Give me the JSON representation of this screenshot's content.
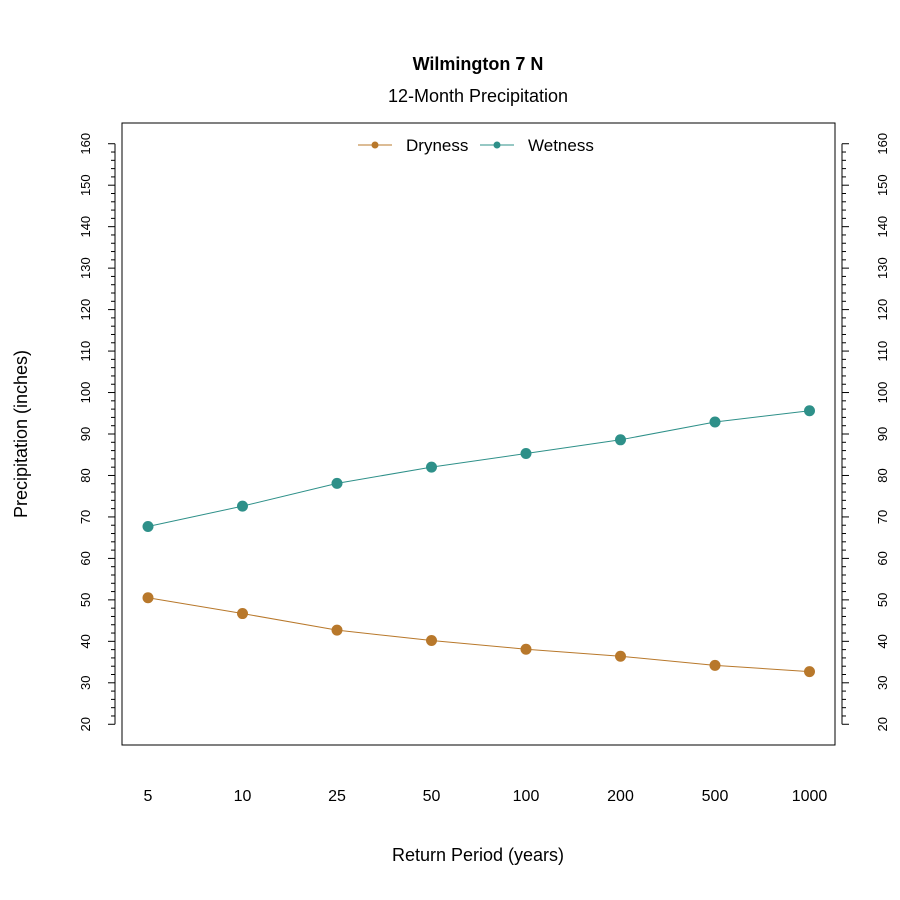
{
  "chart_data": {
    "type": "line",
    "title": "Wilmington 7 N",
    "subtitle": "12-Month Precipitation",
    "xlabel": "Return Period (years)",
    "ylabel": "Precipitation (inches)",
    "categories": [
      "5",
      "10",
      "25",
      "50",
      "100",
      "200",
      "500",
      "1000"
    ],
    "ylim": [
      15,
      165
    ],
    "yticks_major": [
      20,
      30,
      40,
      50,
      60,
      70,
      80,
      90,
      100,
      110,
      120,
      130,
      140,
      150,
      160
    ],
    "yticks_minor_step": 2,
    "grid": false,
    "legend_position": "top-center",
    "series": [
      {
        "name": "Dryness",
        "color": "#B8782B",
        "values": [
          50.5,
          46.7,
          42.7,
          40.2,
          38.1,
          36.4,
          34.2,
          32.7
        ]
      },
      {
        "name": "Wetness",
        "color": "#2E9089",
        "values": [
          67.7,
          72.6,
          78.1,
          82.0,
          85.3,
          88.6,
          92.9,
          95.6
        ]
      }
    ]
  }
}
